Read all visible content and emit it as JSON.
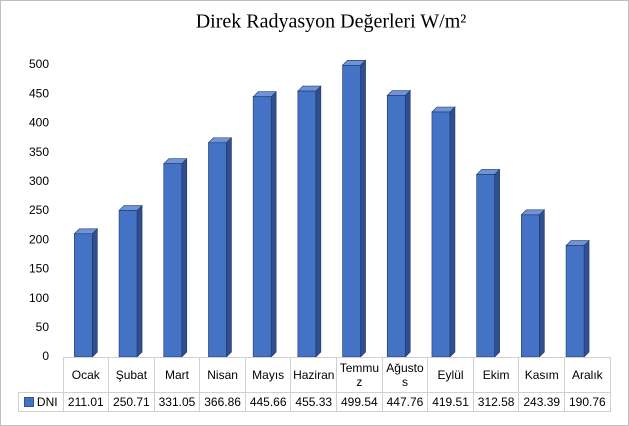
{
  "chart_data": {
    "type": "bar3d",
    "title": "Direk Radyasyon Değerleri W/m²",
    "categories": [
      "Ocak",
      "Şubat",
      "Mart",
      "Nisan",
      "Mayıs",
      "Haziran",
      "Temmuz",
      "Ağustos",
      "Eylül",
      "Ekim",
      "Kasım",
      "Aralık"
    ],
    "series": [
      {
        "name": "DNI",
        "color": "#4472c4",
        "values": [
          211.01,
          250.71,
          331.05,
          366.86,
          445.66,
          455.33,
          499.54,
          447.76,
          419.51,
          312.58,
          243.39,
          190.76
        ]
      }
    ],
    "ylim": [
      0,
      500
    ],
    "yticks": [
      0,
      50,
      100,
      150,
      200,
      250,
      300,
      350,
      400,
      450,
      500
    ],
    "grid": false
  }
}
